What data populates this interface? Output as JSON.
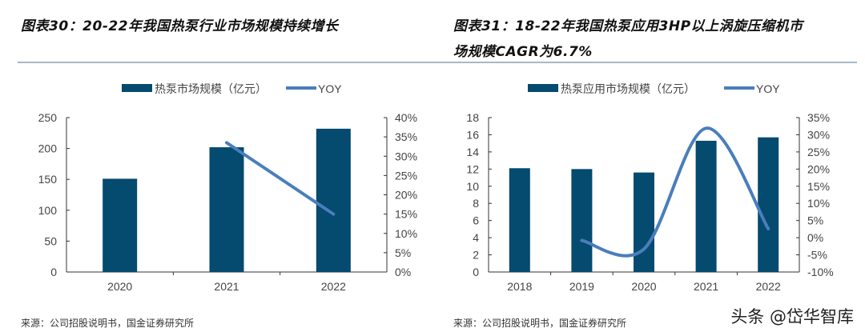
{
  "titles": {
    "left": "图表30：20-22年我国热泵行业市场规模持续增长",
    "right_line1": "图表31：18-22年我国热泵应用3HP以上涡旋压缩机市",
    "right_line2": "场规模CAGR为6.7%"
  },
  "sources": {
    "left": "来源：公司招股说明书，国金证券研究所",
    "right": "来源：公司招股说明书，国金证券研究所"
  },
  "watermark": "头条 @岱华智库",
  "colors": {
    "bar": "#054a6f",
    "line": "#4a7ebb"
  },
  "chart_data": [
    {
      "type": "bar+line",
      "categories": [
        "2020",
        "2021",
        "2022"
      ],
      "series": [
        {
          "name": "热泵市场规模（亿元）",
          "type": "bar",
          "axis": "left",
          "values": [
            151,
            202,
            232
          ]
        },
        {
          "name": "YOY",
          "type": "line",
          "axis": "right",
          "values": [
            null,
            0.335,
            0.15
          ]
        }
      ],
      "ylim": [
        0,
        250
      ],
      "yticks": [
        0,
        50,
        100,
        150,
        200,
        250
      ],
      "y2lim": [
        0,
        0.4
      ],
      "y2ticks": [
        "0%",
        "5%",
        "10%",
        "15%",
        "20%",
        "25%",
        "30%",
        "35%",
        "40%"
      ],
      "legend": "top",
      "smooth": false
    },
    {
      "type": "bar+line",
      "categories": [
        "2018",
        "2019",
        "2020",
        "2021",
        "2022"
      ],
      "series": [
        {
          "name": "热泵应用市场规模（亿元）",
          "type": "bar",
          "axis": "left",
          "values": [
            12.1,
            12.0,
            11.6,
            15.3,
            15.7
          ]
        },
        {
          "name": "YOY",
          "type": "line",
          "axis": "right",
          "values": [
            null,
            -0.008,
            -0.033,
            0.319,
            0.026
          ]
        }
      ],
      "ylim": [
        0,
        18
      ],
      "yticks": [
        0,
        2,
        4,
        6,
        8,
        10,
        12,
        14,
        16,
        18
      ],
      "y2lim": [
        -0.1,
        0.35
      ],
      "y2ticks": [
        "-10%",
        "-5%",
        "0%",
        "5%",
        "10%",
        "15%",
        "20%",
        "25%",
        "30%",
        "35%"
      ],
      "legend": "top",
      "smooth": true
    }
  ]
}
